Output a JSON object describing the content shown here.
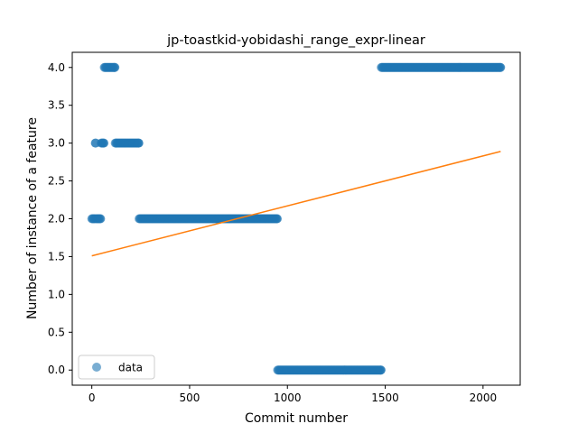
{
  "chart_data": {
    "type": "scatter",
    "title": "jp-toastkid-yobidashi_range_expr-linear",
    "xlabel": "Commit number",
    "ylabel": "Number of instance of a feature",
    "xlim": [
      -100,
      2190
    ],
    "ylim": [
      -0.2,
      4.2
    ],
    "x_ticks": [
      0,
      500,
      1000,
      1500,
      2000
    ],
    "y_ticks": [
      0.0,
      0.5,
      1.0,
      1.5,
      2.0,
      2.5,
      3.0,
      3.5,
      4.0
    ],
    "x_tick_labels": [
      "0",
      "500",
      "1000",
      "1500",
      "2000"
    ],
    "y_tick_labels": [
      "0.0",
      "0.5",
      "1.0",
      "1.5",
      "2.0",
      "2.5",
      "3.0",
      "3.5",
      "4.0"
    ],
    "grid": false,
    "legend_position": "lower-left",
    "legend": [
      "data"
    ],
    "series": [
      {
        "name": "data",
        "kind": "scatter",
        "color": "#1f77b4",
        "segments": [
          {
            "x_start": 0,
            "x_end": 15,
            "y": 2
          },
          {
            "x_start": 18,
            "x_end": 20,
            "y": 3
          },
          {
            "x_start": 22,
            "x_end": 45,
            "y": 2
          },
          {
            "x_start": 48,
            "x_end": 62,
            "y": 3
          },
          {
            "x_start": 64,
            "x_end": 118,
            "y": 4
          },
          {
            "x_start": 120,
            "x_end": 240,
            "y": 3
          },
          {
            "x_start": 242,
            "x_end": 948,
            "y": 2
          },
          {
            "x_start": 950,
            "x_end": 1478,
            "y": 0
          },
          {
            "x_start": 1480,
            "x_end": 2090,
            "y": 4
          }
        ]
      },
      {
        "kind": "line",
        "color": "#ff7f0e",
        "x": [
          0,
          2090
        ],
        "y": [
          1.51,
          2.89
        ]
      }
    ]
  }
}
